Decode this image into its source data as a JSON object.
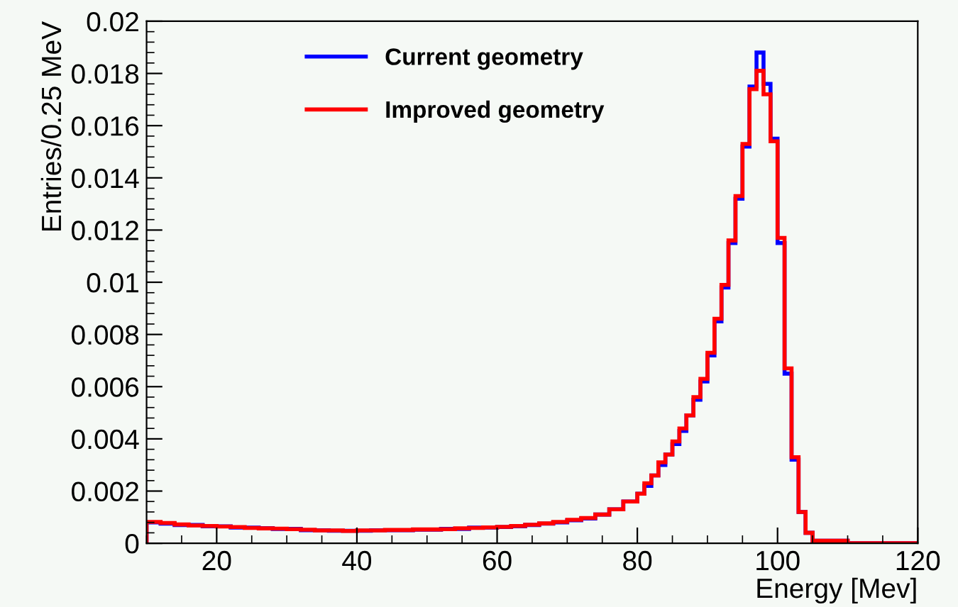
{
  "chart_data": {
    "type": "histogram",
    "xlabel": "Energy [Mev]",
    "ylabel": "Entries/0.25 MeV",
    "bins": [
      10,
      12,
      14,
      16,
      18,
      20,
      22,
      24,
      26,
      28,
      30,
      32,
      34,
      36,
      38,
      40,
      42,
      44,
      46,
      48,
      50,
      52,
      54,
      56,
      58,
      60,
      62,
      64,
      66,
      68,
      70,
      72,
      74,
      76,
      78,
      80,
      81,
      82,
      83,
      84,
      85,
      86,
      87,
      88,
      89,
      90,
      91,
      92,
      93,
      94,
      95,
      96,
      97,
      98,
      99,
      100,
      101,
      102,
      103,
      104,
      105,
      106,
      110,
      115,
      120
    ],
    "series": [
      {
        "name": "Current geometry",
        "color": "#0000ff",
        "values": [
          0.0008,
          0.00075,
          0.0007,
          0.0007,
          0.00065,
          0.00065,
          0.0006,
          0.0006,
          0.00058,
          0.00055,
          0.00055,
          0.0005,
          0.0005,
          0.00048,
          0.00048,
          0.00048,
          0.0005,
          0.0005,
          0.0005,
          0.00052,
          0.00052,
          0.00055,
          0.00055,
          0.0006,
          0.0006,
          0.00062,
          0.00065,
          0.0007,
          0.00075,
          0.0008,
          0.00088,
          0.00095,
          0.0011,
          0.0013,
          0.0016,
          0.0019,
          0.0022,
          0.0026,
          0.003,
          0.0034,
          0.0038,
          0.0043,
          0.0049,
          0.0055,
          0.0062,
          0.0072,
          0.0085,
          0.0098,
          0.0115,
          0.0132,
          0.0152,
          0.0175,
          0.0188,
          0.0176,
          0.0155,
          0.0115,
          0.0065,
          0.0032,
          0.0012,
          0.0004,
          0.0001,
          0.0001,
          0,
          0
        ]
      },
      {
        "name": "Improved geometry",
        "color": "#ff0000",
        "values": [
          0.00082,
          0.00078,
          0.00072,
          0.00068,
          0.00066,
          0.00064,
          0.00062,
          0.00059,
          0.00057,
          0.00056,
          0.00054,
          0.00052,
          0.00049,
          0.00049,
          0.00047,
          0.00049,
          0.00049,
          0.00051,
          0.00051,
          0.00053,
          0.00053,
          0.00054,
          0.00057,
          0.00059,
          0.00061,
          0.00063,
          0.00066,
          0.00071,
          0.00076,
          0.00082,
          0.0009,
          0.00097,
          0.0011,
          0.0013,
          0.0016,
          0.0019,
          0.0023,
          0.0026,
          0.0031,
          0.0034,
          0.0039,
          0.0044,
          0.0049,
          0.0056,
          0.0063,
          0.0073,
          0.0086,
          0.0099,
          0.0116,
          0.0133,
          0.0153,
          0.0174,
          0.0181,
          0.0172,
          0.0154,
          0.0117,
          0.0067,
          0.0033,
          0.0012,
          0.0004,
          0.0001,
          0.0001,
          0,
          0
        ]
      }
    ],
    "xlim": [
      10,
      120
    ],
    "xticks": [
      20,
      40,
      60,
      80,
      100,
      120
    ],
    "ylim": [
      0,
      0.02
    ],
    "yticks": [
      0,
      0.002,
      0.004,
      0.006,
      0.008,
      0.01,
      0.012,
      0.014,
      0.016,
      0.018,
      0.02
    ],
    "grid": false,
    "legend": "top left"
  }
}
